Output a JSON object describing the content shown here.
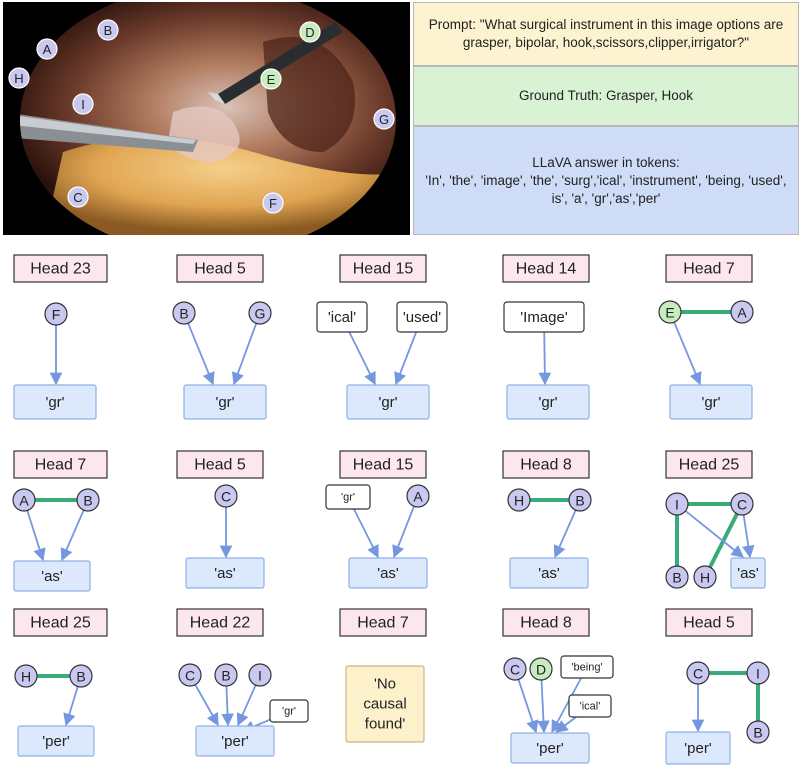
{
  "panel": {
    "prompt": "Prompt: \"What surgical instrument in this image options are grasper, bipolar, hook,scissors,clipper,irrigator?\"",
    "ground_truth": "Ground Truth: Grasper, Hook",
    "llava_title": "LLaVA answer in tokens:",
    "llava_tokens": "'In', 'the', 'image', 'the', 'surg','ical', 'instrument', 'being, 'used', is', 'a', 'gr','as','per'"
  },
  "photo_markers": [
    {
      "label": "A",
      "green": false
    },
    {
      "label": "B",
      "green": false
    },
    {
      "label": "C",
      "green": false
    },
    {
      "label": "D",
      "green": true
    },
    {
      "label": "E",
      "green": true
    },
    {
      "label": "F",
      "green": false
    },
    {
      "label": "G",
      "green": false
    },
    {
      "label": "H",
      "green": false
    },
    {
      "label": "I",
      "green": false
    }
  ],
  "graphs": [
    {
      "head": "Head 23",
      "target": "'gr'",
      "nodes": [
        {
          "label": "F"
        }
      ]
    },
    {
      "head": "Head 5",
      "target": "'gr'",
      "nodes": [
        {
          "label": "B"
        },
        {
          "label": "G"
        }
      ]
    },
    {
      "head": "Head 15",
      "target": "'gr'",
      "nodes": [
        {
          "label": "'ical'"
        },
        {
          "label": "'used'"
        }
      ]
    },
    {
      "head": "Head 14",
      "target": "'gr'",
      "nodes": [
        {
          "label": "'Image'"
        }
      ]
    },
    {
      "head": "Head 7",
      "target": "'gr'",
      "nodes": [
        {
          "label": "E"
        },
        {
          "label": "A"
        }
      ]
    },
    {
      "head": "Head 7",
      "target": "'as'",
      "nodes": [
        {
          "label": "A"
        },
        {
          "label": "B"
        }
      ]
    },
    {
      "head": "Head 5",
      "target": "'as'",
      "nodes": [
        {
          "label": "C"
        }
      ]
    },
    {
      "head": "Head 15",
      "target": "'as'",
      "nodes": [
        {
          "label": "'gr'"
        },
        {
          "label": "A"
        }
      ]
    },
    {
      "head": "Head 8",
      "target": "'as'",
      "nodes": [
        {
          "label": "H"
        },
        {
          "label": "B"
        }
      ]
    },
    {
      "head": "Head 25",
      "target": "'as'",
      "nodes": [
        {
          "label": "I"
        },
        {
          "label": "C"
        },
        {
          "label": "B"
        },
        {
          "label": "H"
        }
      ]
    },
    {
      "head": "Head 25",
      "target": "'per'",
      "nodes": [
        {
          "label": "H"
        },
        {
          "label": "B"
        }
      ]
    },
    {
      "head": "Head 22",
      "target": "'per'",
      "nodes": [
        {
          "label": "C"
        },
        {
          "label": "B"
        },
        {
          "label": "I"
        },
        {
          "label": "'gr'"
        }
      ]
    },
    {
      "head": "Head 7",
      "target": "'No causal found'",
      "nodes": []
    },
    {
      "head": "Head 8",
      "target": "'per'",
      "nodes": [
        {
          "label": "C"
        },
        {
          "label": "D"
        },
        {
          "label": "'being'"
        },
        {
          "label": "'ical'"
        }
      ]
    },
    {
      "head": "Head 5",
      "target": "'per'",
      "nodes": [
        {
          "label": "C"
        },
        {
          "label": "I"
        },
        {
          "label": "B"
        }
      ]
    }
  ],
  "colors": {
    "head_fill": "#fde7ef",
    "node_fill": "#c8c8f0",
    "node_green": "#c7ecc0",
    "target_fill": "#dce8fb",
    "target_stroke": "#8fb0e8",
    "arrow": "#7497e0",
    "association": "#3aaa7a",
    "no_causal_fill": "#fdf1cc"
  }
}
